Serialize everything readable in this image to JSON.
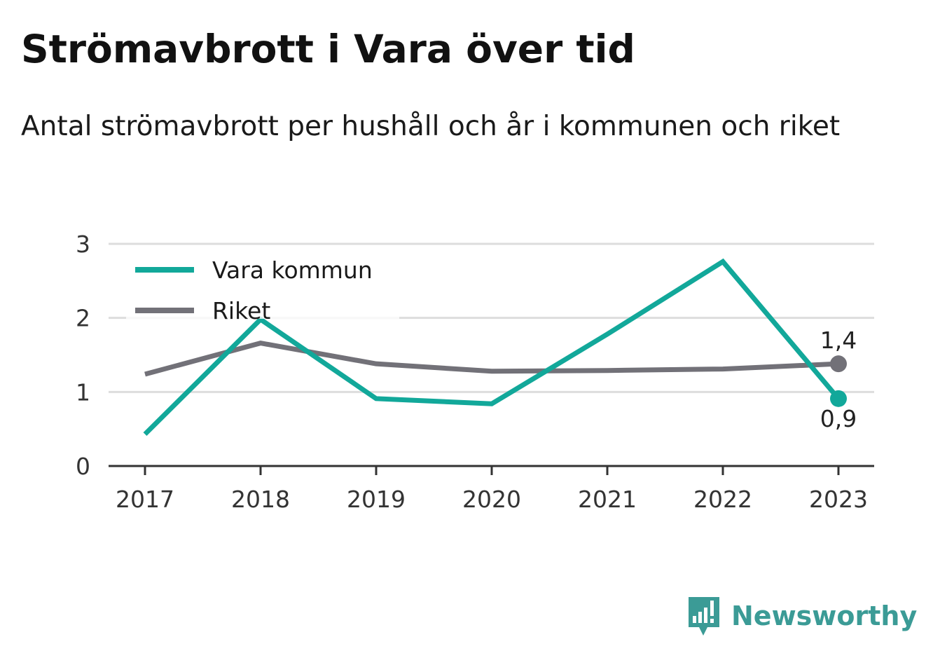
{
  "title": "Strömavbrott i Vara över tid",
  "subtitle": "Antal strömavbrott per hushåll och år i kommunen och riket",
  "brand": {
    "name": "Newsworthy",
    "icon": "newsworthy-logo-icon",
    "color": "#3b9b96"
  },
  "chart_data": {
    "type": "line",
    "categories": [
      "2017",
      "2018",
      "2019",
      "2020",
      "2021",
      "2022",
      "2023"
    ],
    "yticks": [
      "0",
      "1",
      "2",
      "3"
    ],
    "ylim": [
      0,
      3
    ],
    "grid": true,
    "legend_position": "top-left",
    "series": [
      {
        "name": "Vara kommun",
        "color": "#12a89a",
        "values": [
          0.43,
          1.98,
          0.91,
          0.84,
          1.78,
          2.76,
          0.91
        ],
        "end_label": "0,9"
      },
      {
        "name": "Riket",
        "color": "#727178",
        "values": [
          1.24,
          1.66,
          1.38,
          1.28,
          1.29,
          1.31,
          1.38
        ],
        "end_label": "1,4"
      }
    ]
  }
}
